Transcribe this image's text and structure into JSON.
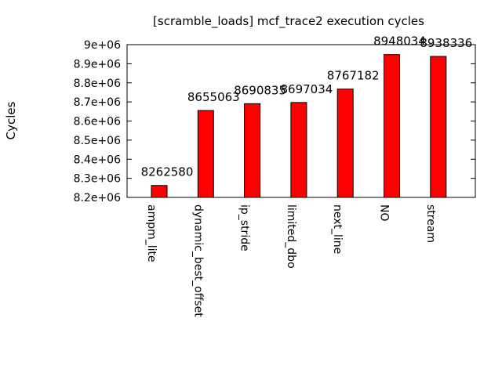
{
  "chart_data": {
    "type": "bar",
    "title": "[scramble_loads] mcf_trace2 execution cycles",
    "xlabel": "",
    "ylabel": "Cycles",
    "categories": [
      "ampm_lite",
      "dynamic_best_offset",
      "ip_stride",
      "limited_dbo",
      "next_line",
      "NO",
      "stream"
    ],
    "values": [
      8262580,
      8655063,
      8690835,
      8697034,
      8767182,
      8948034,
      8938336
    ],
    "data_labels": [
      "8262580",
      "8655063",
      "8690835",
      "8697034",
      "8767182",
      "8948034",
      "8938336"
    ],
    "ylim": [
      8200000,
      9000000
    ],
    "yticks": [
      8200000,
      8300000,
      8400000,
      8500000,
      8600000,
      8700000,
      8800000,
      8900000,
      9000000
    ],
    "ytick_labels": [
      "8.2e+06",
      "8.3e+06",
      "8.4e+06",
      "8.5e+06",
      "8.6e+06",
      "8.7e+06",
      "8.8e+06",
      "8.9e+06",
      "9e+06"
    ],
    "bar_color": "#ff0000",
    "grid": false,
    "legend": "none"
  }
}
